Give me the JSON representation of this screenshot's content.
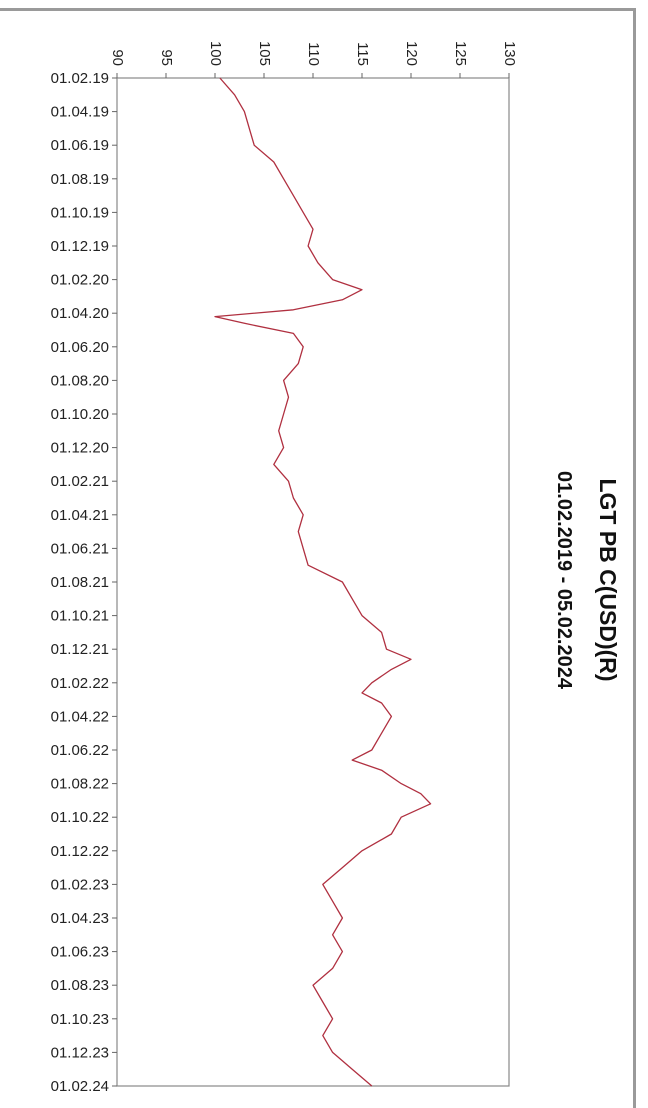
{
  "chart_data": {
    "type": "line",
    "title": "LGT PB C(USD)(R)",
    "subtitle": "01.02.2019 - 05.02.2024",
    "orientation": "rotated-90-clockwise",
    "y_ticks": [
      "90",
      "95",
      "100",
      "105",
      "110",
      "115",
      "120",
      "125",
      "130"
    ],
    "ylim": [
      90,
      130
    ],
    "x_ticks": [
      "01.02.19",
      "01.04.19",
      "01.06.19",
      "01.08.19",
      "01.10.19",
      "01.12.19",
      "01.02.20",
      "01.04.20",
      "01.06.20",
      "01.08.20",
      "01.10.20",
      "01.12.20",
      "01.02.21",
      "01.04.21",
      "01.06.21",
      "01.08.21",
      "01.10.21",
      "01.12.21",
      "01.02.22",
      "01.04.22",
      "01.06.22",
      "01.08.22",
      "01.10.22",
      "01.12.22",
      "01.02.23",
      "01.04.23",
      "01.06.23",
      "01.08.23",
      "01.10.23",
      "01.12.23",
      "01.02.24"
    ],
    "grid": false,
    "line_color": "#b03040",
    "series": [
      {
        "values": [
          [
            0,
            100.5
          ],
          [
            0.5,
            102
          ],
          [
            1,
            103
          ],
          [
            1.5,
            103.5
          ],
          [
            2,
            104
          ],
          [
            2.5,
            106
          ],
          [
            3,
            107
          ],
          [
            3.5,
            108
          ],
          [
            4,
            109
          ],
          [
            4.5,
            110
          ],
          [
            5,
            109.5
          ],
          [
            5.5,
            110.5
          ],
          [
            6,
            112
          ],
          [
            6.3,
            115
          ],
          [
            6.6,
            113
          ],
          [
            6.9,
            108
          ],
          [
            7.1,
            100
          ],
          [
            7.3,
            103
          ],
          [
            7.6,
            108
          ],
          [
            8,
            109
          ],
          [
            8.5,
            108.5
          ],
          [
            9,
            107
          ],
          [
            9.5,
            107.5
          ],
          [
            10,
            107
          ],
          [
            10.5,
            106.5
          ],
          [
            11,
            107
          ],
          [
            11.5,
            106
          ],
          [
            12,
            107.5
          ],
          [
            12.5,
            108
          ],
          [
            13,
            109
          ],
          [
            13.5,
            108.5
          ],
          [
            14,
            109
          ],
          [
            14.5,
            109.5
          ],
          [
            15,
            113
          ],
          [
            15.5,
            114
          ],
          [
            16,
            115
          ],
          [
            16.5,
            117
          ],
          [
            17,
            117.5
          ],
          [
            17.3,
            120
          ],
          [
            17.6,
            118
          ],
          [
            18,
            116
          ],
          [
            18.3,
            115
          ],
          [
            18.6,
            117
          ],
          [
            19,
            118
          ],
          [
            19.5,
            117
          ],
          [
            20,
            116
          ],
          [
            20.3,
            114
          ],
          [
            20.6,
            117
          ],
          [
            21,
            119
          ],
          [
            21.3,
            121
          ],
          [
            21.6,
            122
          ],
          [
            22,
            119
          ],
          [
            22.5,
            118
          ],
          [
            23,
            115
          ],
          [
            23.5,
            113
          ],
          [
            24,
            111
          ],
          [
            24.5,
            112
          ],
          [
            25,
            113
          ],
          [
            25.5,
            112
          ],
          [
            26,
            113
          ],
          [
            26.5,
            112
          ],
          [
            27,
            110
          ],
          [
            27.5,
            111
          ],
          [
            28,
            112
          ],
          [
            28.5,
            111
          ],
          [
            29,
            112
          ],
          [
            29.5,
            114
          ],
          [
            30,
            116
          ]
        ]
      }
    ]
  }
}
